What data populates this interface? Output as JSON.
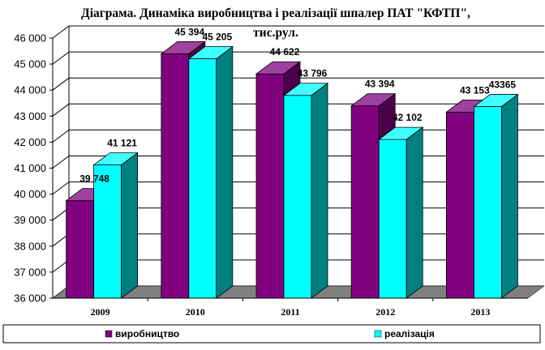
{
  "chart_data": {
    "type": "bar",
    "title_line1": "Діаграма. Динаміка виробництва і реалізації шпалер ПАТ \"КФТП\",",
    "title_line2": "тис.рул.",
    "categories": [
      "2009",
      "2010",
      "2011",
      "2012",
      "2013"
    ],
    "series": [
      {
        "name": "виробництво",
        "values": [
          39748,
          45394,
          44622,
          43394,
          43153
        ],
        "labels": [
          "39 748",
          "45 394",
          "44 622",
          "43 394",
          "43 153"
        ],
        "front_color": "#800080",
        "side_color": "#4b004b",
        "top_color": "#a040a0"
      },
      {
        "name": "реалізація",
        "values": [
          41121,
          45205,
          43796,
          42102,
          43365
        ],
        "labels": [
          "41 121",
          "45 205",
          "43 796",
          "42 102",
          "43365"
        ],
        "front_color": "#00ffff",
        "side_color": "#008080",
        "top_color": "#40ffff"
      }
    ],
    "ylim": [
      36000,
      46000
    ],
    "ytick_step": 1000,
    "ytick_labels": [
      "36 000",
      "37 000",
      "38 000",
      "39 000",
      "40 000",
      "41 000",
      "42 000",
      "43 000",
      "44 000",
      "45 000",
      "46 000"
    ],
    "grid": true,
    "legend_position": "bottom",
    "floor_color": "#808080"
  }
}
